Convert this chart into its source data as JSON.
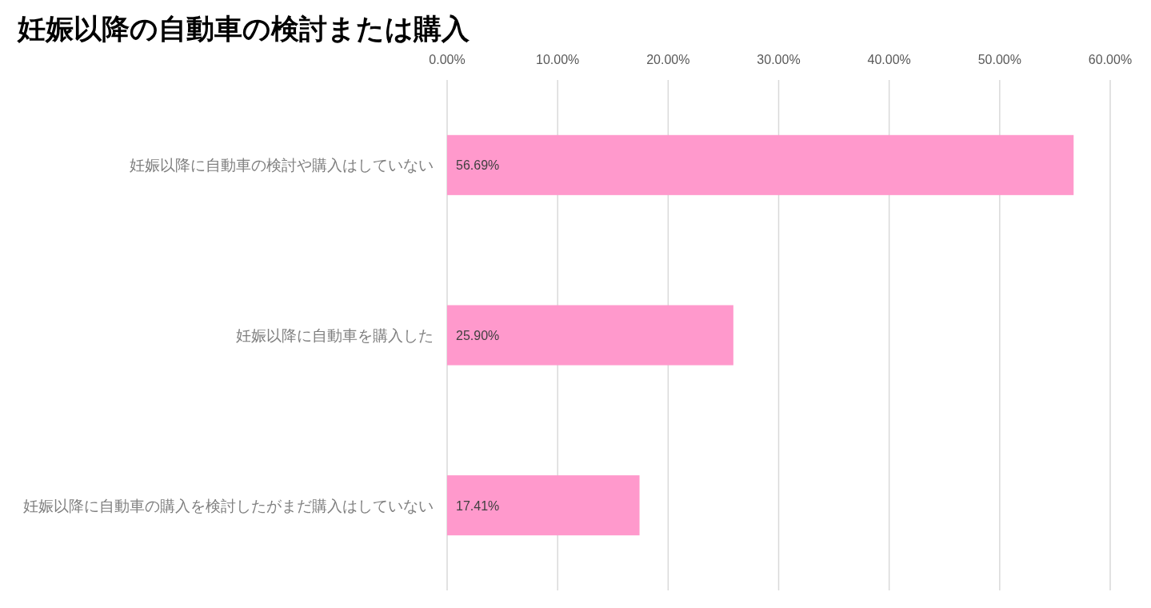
{
  "chart_data": {
    "type": "bar",
    "title": "妊娠以降の自動車の検討または購入",
    "orientation": "horizontal",
    "categories": [
      "妊娠以降に自動車の検討や購入はしていない",
      "妊娠以降に自動車を購入した",
      "妊娠以降に自動車の購入を検討したがまだ購入はしていない"
    ],
    "values": [
      56.69,
      25.9,
      17.41
    ],
    "value_labels": [
      "56.69%",
      "25.90%",
      "17.41%"
    ],
    "color": "#ff99cc",
    "xlim": [
      0,
      60
    ],
    "xticks": [
      {
        "value": 0,
        "label": "0.00%"
      },
      {
        "value": 10,
        "label": "10.00%"
      },
      {
        "value": 20,
        "label": "20.00%"
      },
      {
        "value": 30,
        "label": "30.00%"
      },
      {
        "value": 40,
        "label": "40.00%"
      },
      {
        "value": 50,
        "label": "50.00%"
      },
      {
        "value": 60,
        "label": "60.00%"
      }
    ],
    "grid": "x"
  }
}
